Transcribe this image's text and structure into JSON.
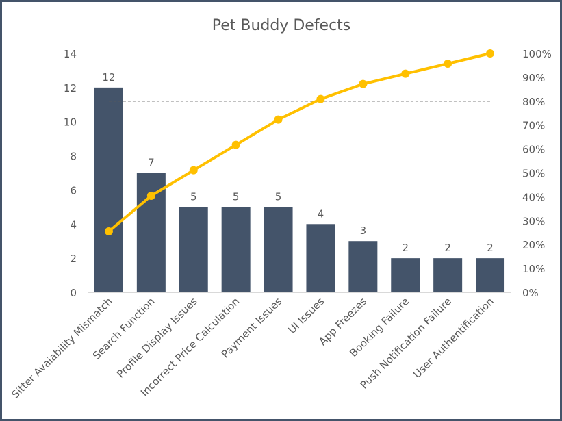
{
  "chart_data": {
    "type": "bar",
    "title": "Pet Buddy Defects",
    "categories": [
      "Sitter Avaiability Mismatch",
      "Search Function",
      "Profile Display Issues",
      "Incorrect Price Calculation",
      "Payment Issues",
      "UI Issues",
      "App Freezes",
      "Booking Failure",
      "Push Notification Failure",
      "User Authentification"
    ],
    "series": [
      {
        "name": "Defects",
        "type": "bar",
        "axis": "left",
        "values": [
          12,
          7,
          5,
          5,
          5,
          4,
          3,
          2,
          2,
          2
        ],
        "color": "#44546A"
      },
      {
        "name": "Cumulative %",
        "type": "line",
        "axis": "right",
        "values": [
          25.5,
          40.4,
          51.1,
          61.7,
          72.3,
          80.9,
          87.2,
          91.5,
          95.7,
          100
        ],
        "color": "#FFC000"
      }
    ],
    "data_labels": [
      "12",
      "7",
      "5",
      "5",
      "5",
      "4",
      "3",
      "2",
      "2",
      "2"
    ],
    "threshold": {
      "value": 80,
      "axis": "right",
      "style": "dashed",
      "color": "#595959"
    },
    "ylim": [
      0,
      14
    ],
    "yticks": [
      "0",
      "2",
      "4",
      "6",
      "8",
      "10",
      "12",
      "14"
    ],
    "y2lim": [
      0,
      100
    ],
    "y2ticks": [
      "0%",
      "10%",
      "20%",
      "30%",
      "40%",
      "50%",
      "60%",
      "70%",
      "80%",
      "90%",
      "100%"
    ],
    "xlabel": "",
    "ylabel": "",
    "y2label": "",
    "grid": false,
    "legend": "none"
  }
}
